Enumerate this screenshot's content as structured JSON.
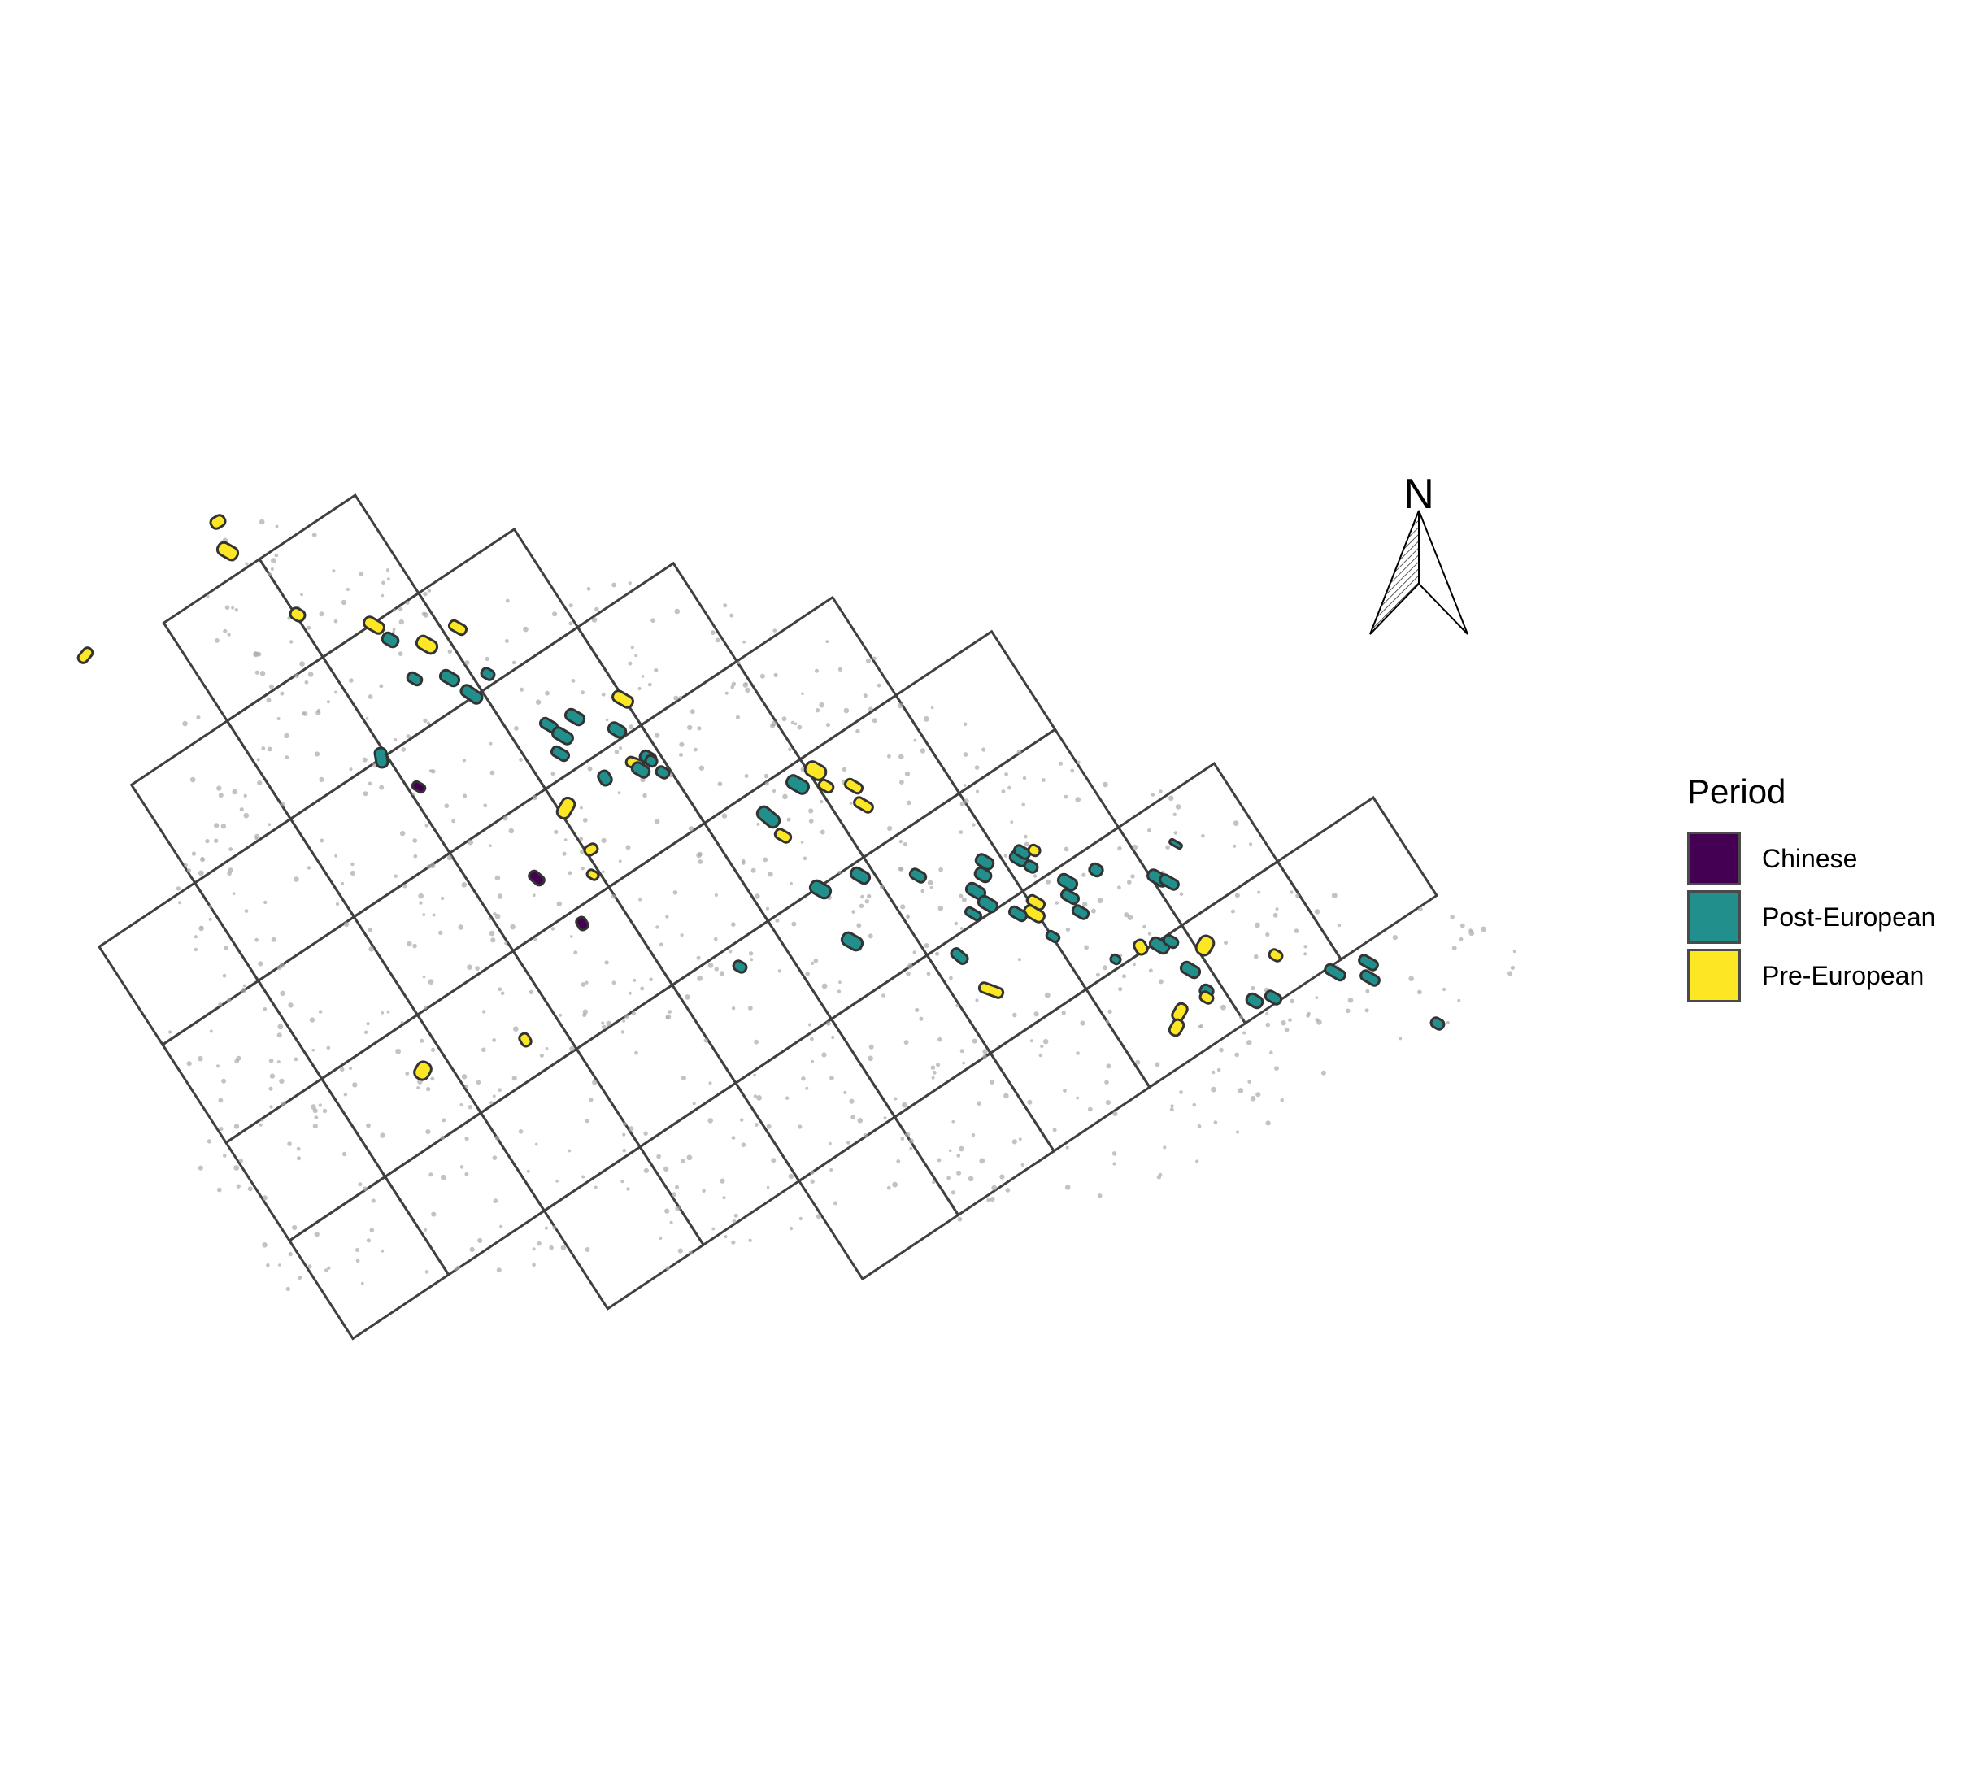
{
  "map": {
    "north_arrow": {
      "label": "N"
    },
    "legend": {
      "title": "Period",
      "items": [
        {
          "label": "Chinese",
          "color": "#440154"
        },
        {
          "label": "Post-European",
          "color": "#21908C"
        },
        {
          "label": "Pre-European",
          "color": "#FDE725"
        }
      ]
    },
    "colors": {
      "grid_stroke": "#404040",
      "site_outline": "#333333",
      "scatter_points": "#a9a9a9"
    }
  }
}
